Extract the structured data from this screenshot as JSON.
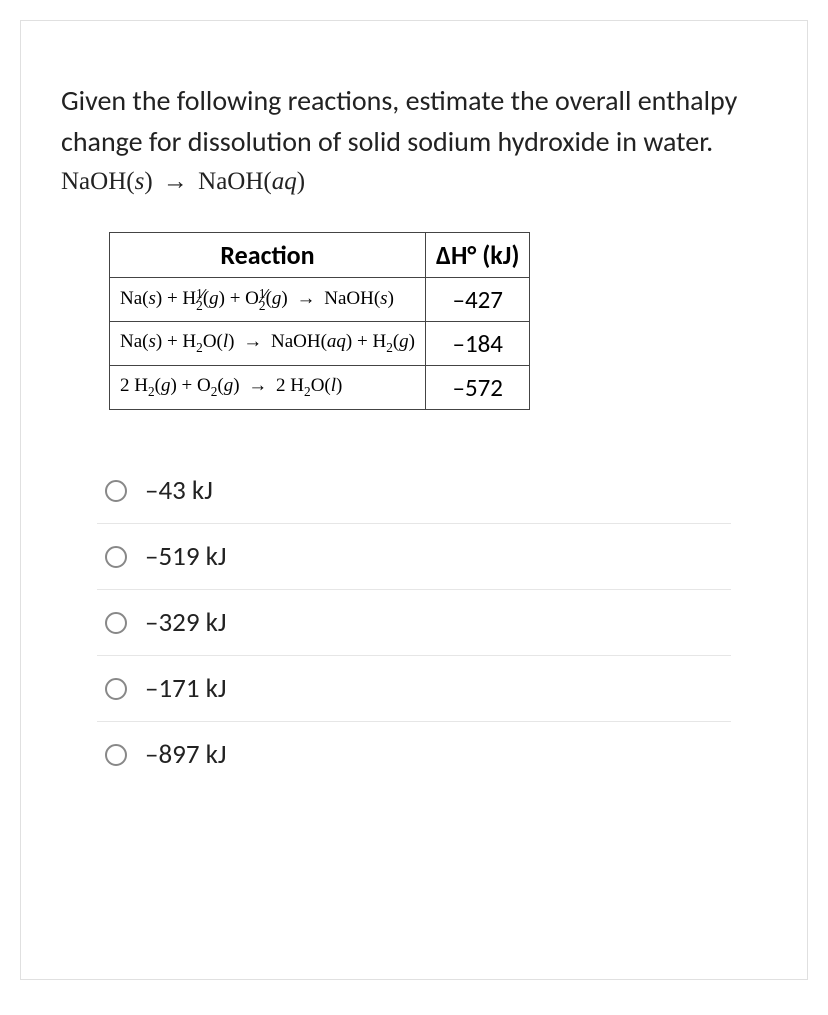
{
  "question": {
    "prompt": "Given the following reactions, estimate the overall enthalpy change for dissolution of solid sodium hydroxide in water.",
    "main_equation_html": "NaOH(<span class='ital'>s</span>) <span class='arrow'>→</span> NaOH(<span class='ital'>aq</span>)"
  },
  "table": {
    "headers": {
      "reaction": "Reaction",
      "delta_h_html": "ΔH° (kJ)"
    },
    "rows": [
      {
        "reaction_html": "Na(<span class='ital'>s</span>) + H<span class='frac'><span class='num'>1</span><span class='slash'>∕</span><span class='den'>2</span></span>(<span class='ital'>g</span>) + O<span class='frac'><span class='num'>1</span><span class='slash'>∕</span><span class='den'>2</span></span>(<span class='ital'>g</span>) <span class='arrow'>→</span> NaOH(<span class='ital'>s</span>)",
        "value": "–427"
      },
      {
        "reaction_html": "Na(<span class='ital'>s</span>) + H<sub>2</sub>O(<span class='ital'>l</span>) <span class='arrow'>→</span> NaOH(<span class='ital'>aq</span>) + H<sub>2</sub>(<span class='ital'>g</span>)",
        "value": "–184"
      },
      {
        "reaction_html": "2 H<sub>2</sub>(<span class='ital'>g</span>) + O<sub>2</sub>(<span class='ital'>g</span>) <span class='arrow'>→</span> 2 H<sub>2</sub>O(<span class='ital'>l</span>)",
        "value": "–572"
      }
    ]
  },
  "options": [
    {
      "label": "–43 kJ"
    },
    {
      "label": "–519 kJ"
    },
    {
      "label": "–329 kJ"
    },
    {
      "label": "–171 kJ"
    },
    {
      "label": "–897 kJ"
    }
  ],
  "style": {
    "body_font": "Calibri, 'Segoe UI', Arial, sans-serif",
    "math_font": "'Cambria Math', 'Times New Roman', serif",
    "text_color": "#222222",
    "card_border": "#e0e0e0",
    "table_border": "#444444",
    "option_divider": "#e6e6e6",
    "radio_border": "#888888",
    "question_fontsize": 28,
    "equation_fontsize": 25,
    "th_fontsize": 26,
    "reaction_fontsize": 19,
    "value_fontsize": 25,
    "option_fontsize": 27
  }
}
